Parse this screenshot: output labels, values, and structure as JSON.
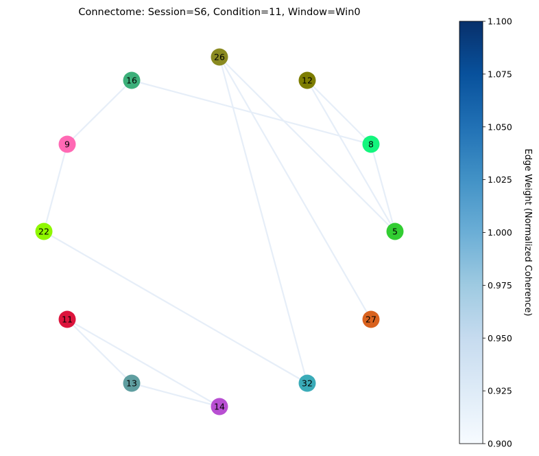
{
  "title": "Connectome: Session=S6, Condition=11, Window=Win0",
  "nodes": [
    {
      "id": "26",
      "color": "#8a8a20"
    },
    {
      "id": "12",
      "color": "#7d7d00"
    },
    {
      "id": "16",
      "color": "#3cb07a"
    },
    {
      "id": "8",
      "color": "#13f57d"
    },
    {
      "id": "9",
      "color": "#ff69b4"
    },
    {
      "id": "5",
      "color": "#32cd32"
    },
    {
      "id": "22",
      "color": "#8ff700"
    },
    {
      "id": "11",
      "color": "#dc143c"
    },
    {
      "id": "27",
      "color": "#d9621e"
    },
    {
      "id": "13",
      "color": "#5f9ea0"
    },
    {
      "id": "32",
      "color": "#3aabb8"
    },
    {
      "id": "14",
      "color": "#b84fd2"
    }
  ],
  "edges": [
    {
      "source": "16",
      "target": "9",
      "weight": 0.9
    },
    {
      "source": "16",
      "target": "8",
      "weight": 0.9
    },
    {
      "source": "26",
      "target": "5",
      "weight": 0.9
    },
    {
      "source": "26",
      "target": "27",
      "weight": 0.9
    },
    {
      "source": "26",
      "target": "32",
      "weight": 0.9
    },
    {
      "source": "12",
      "target": "8",
      "weight": 0.9
    },
    {
      "source": "12",
      "target": "5",
      "weight": 0.9
    },
    {
      "source": "8",
      "target": "5",
      "weight": 0.9
    },
    {
      "source": "9",
      "target": "22",
      "weight": 0.9
    },
    {
      "source": "22",
      "target": "32",
      "weight": 0.9
    },
    {
      "source": "11",
      "target": "13",
      "weight": 0.9
    },
    {
      "source": "11",
      "target": "14",
      "weight": 0.9
    },
    {
      "source": "13",
      "target": "14",
      "weight": 0.9
    }
  ],
  "colorbar": {
    "label": "Edge Weight (Normalized Coherence)",
    "min": 0.9,
    "max": 1.1,
    "colormap": "Blues",
    "color_low": "#f7fbff",
    "color_high": "#08306b",
    "ticks": [
      "0.900",
      "0.925",
      "0.950",
      "0.975",
      "1.000",
      "1.025",
      "1.050",
      "1.075",
      "1.100"
    ]
  }
}
